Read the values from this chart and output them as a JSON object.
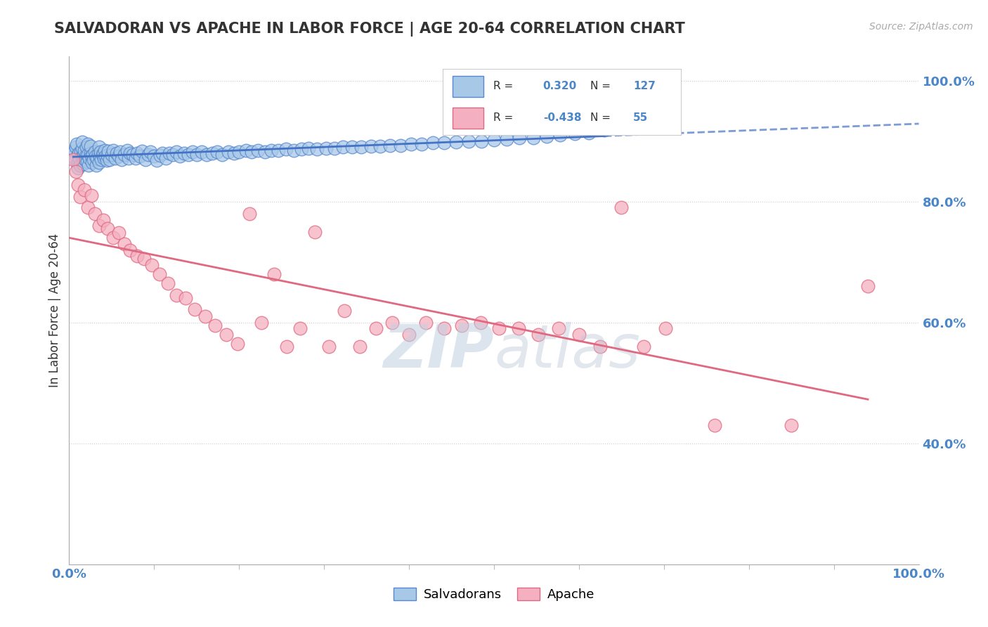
{
  "title": "SALVADORAN VS APACHE IN LABOR FORCE | AGE 20-64 CORRELATION CHART",
  "source": "Source: ZipAtlas.com",
  "ylabel": "In Labor Force | Age 20-64",
  "xlim": [
    0.0,
    1.0
  ],
  "ylim": [
    0.2,
    1.04
  ],
  "x_tick_labels": [
    "0.0%",
    "100.0%"
  ],
  "y_ticks": [
    0.4,
    0.6,
    0.8,
    1.0
  ],
  "y_tick_labels": [
    "40.0%",
    "60.0%",
    "80.0%",
    "100.0%"
  ],
  "salvadoran_R": 0.32,
  "salvadoran_N": 127,
  "apache_R": -0.438,
  "apache_N": 55,
  "blue_color": "#a8c8e8",
  "pink_color": "#f4afc0",
  "blue_edge_color": "#5588cc",
  "pink_edge_color": "#e06880",
  "blue_line_color": "#4472c4",
  "pink_line_color": "#e06880",
  "watermark_color": "#c8d8e8",
  "background_color": "#ffffff",
  "figsize": [
    14.06,
    8.92
  ],
  "dpi": 100,
  "salvadoran_x": [
    0.005,
    0.006,
    0.007,
    0.008,
    0.009,
    0.01,
    0.01,
    0.01,
    0.011,
    0.012,
    0.013,
    0.014,
    0.015,
    0.015,
    0.015,
    0.016,
    0.017,
    0.018,
    0.019,
    0.02,
    0.02,
    0.021,
    0.022,
    0.022,
    0.023,
    0.024,
    0.025,
    0.025,
    0.026,
    0.027,
    0.028,
    0.029,
    0.03,
    0.031,
    0.032,
    0.033,
    0.034,
    0.035,
    0.035,
    0.036,
    0.037,
    0.038,
    0.039,
    0.04,
    0.041,
    0.042,
    0.043,
    0.044,
    0.045,
    0.046,
    0.048,
    0.05,
    0.052,
    0.054,
    0.056,
    0.058,
    0.06,
    0.062,
    0.065,
    0.068,
    0.07,
    0.072,
    0.075,
    0.078,
    0.08,
    0.083,
    0.086,
    0.09,
    0.093,
    0.096,
    0.1,
    0.103,
    0.107,
    0.11,
    0.114,
    0.118,
    0.122,
    0.126,
    0.13,
    0.135,
    0.14,
    0.145,
    0.15,
    0.156,
    0.162,
    0.168,
    0.174,
    0.18,
    0.187,
    0.194,
    0.2,
    0.208,
    0.215,
    0.222,
    0.23,
    0.238,
    0.246,
    0.255,
    0.264,
    0.273,
    0.282,
    0.292,
    0.302,
    0.312,
    0.322,
    0.333,
    0.344,
    0.355,
    0.366,
    0.378,
    0.39,
    0.402,
    0.415,
    0.428,
    0.441,
    0.455,
    0.47,
    0.485,
    0.5,
    0.515,
    0.53,
    0.546,
    0.562,
    0.578,
    0.595,
    0.612,
    0.63
  ],
  "salvadoran_y": [
    0.875,
    0.883,
    0.87,
    0.89,
    0.895,
    0.878,
    0.865,
    0.855,
    0.88,
    0.872,
    0.86,
    0.882,
    0.875,
    0.888,
    0.898,
    0.862,
    0.876,
    0.885,
    0.87,
    0.878,
    0.89,
    0.866,
    0.878,
    0.895,
    0.86,
    0.872,
    0.88,
    0.892,
    0.875,
    0.865,
    0.878,
    0.87,
    0.882,
    0.875,
    0.86,
    0.872,
    0.88,
    0.89,
    0.865,
    0.875,
    0.882,
    0.87,
    0.878,
    0.88,
    0.872,
    0.885,
    0.875,
    0.868,
    0.876,
    0.883,
    0.87,
    0.878,
    0.885,
    0.872,
    0.88,
    0.875,
    0.882,
    0.87,
    0.878,
    0.885,
    0.872,
    0.88,
    0.878,
    0.872,
    0.88,
    0.875,
    0.883,
    0.87,
    0.878,
    0.882,
    0.875,
    0.868,
    0.876,
    0.88,
    0.872,
    0.88,
    0.878,
    0.882,
    0.875,
    0.88,
    0.878,
    0.882,
    0.878,
    0.882,
    0.878,
    0.88,
    0.882,
    0.878,
    0.882,
    0.88,
    0.882,
    0.885,
    0.882,
    0.885,
    0.882,
    0.885,
    0.885,
    0.887,
    0.885,
    0.887,
    0.888,
    0.887,
    0.888,
    0.888,
    0.89,
    0.89,
    0.89,
    0.892,
    0.892,
    0.893,
    0.893,
    0.895,
    0.895,
    0.897,
    0.897,
    0.898,
    0.9,
    0.9,
    0.902,
    0.903,
    0.905,
    0.906,
    0.908,
    0.91,
    0.912,
    0.914,
    0.918
  ],
  "apache_x": [
    0.005,
    0.008,
    0.01,
    0.013,
    0.018,
    0.022,
    0.026,
    0.03,
    0.035,
    0.04,
    0.045,
    0.052,
    0.058,
    0.065,
    0.072,
    0.08,
    0.088,
    0.097,
    0.106,
    0.116,
    0.126,
    0.137,
    0.148,
    0.16,
    0.172,
    0.185,
    0.198,
    0.212,
    0.226,
    0.241,
    0.256,
    0.272,
    0.289,
    0.306,
    0.324,
    0.342,
    0.361,
    0.38,
    0.4,
    0.42,
    0.441,
    0.462,
    0.484,
    0.506,
    0.529,
    0.552,
    0.576,
    0.6,
    0.625,
    0.65,
    0.676,
    0.702,
    0.76,
    0.85,
    0.94
  ],
  "apache_y": [
    0.87,
    0.85,
    0.828,
    0.808,
    0.82,
    0.79,
    0.81,
    0.78,
    0.76,
    0.77,
    0.755,
    0.74,
    0.748,
    0.73,
    0.72,
    0.71,
    0.705,
    0.695,
    0.68,
    0.665,
    0.645,
    0.64,
    0.622,
    0.61,
    0.595,
    0.58,
    0.565,
    0.78,
    0.6,
    0.68,
    0.56,
    0.59,
    0.75,
    0.56,
    0.62,
    0.56,
    0.59,
    0.6,
    0.58,
    0.6,
    0.59,
    0.595,
    0.6,
    0.59,
    0.59,
    0.58,
    0.59,
    0.58,
    0.56,
    0.79,
    0.56,
    0.59,
    0.43,
    0.43,
    0.66
  ]
}
